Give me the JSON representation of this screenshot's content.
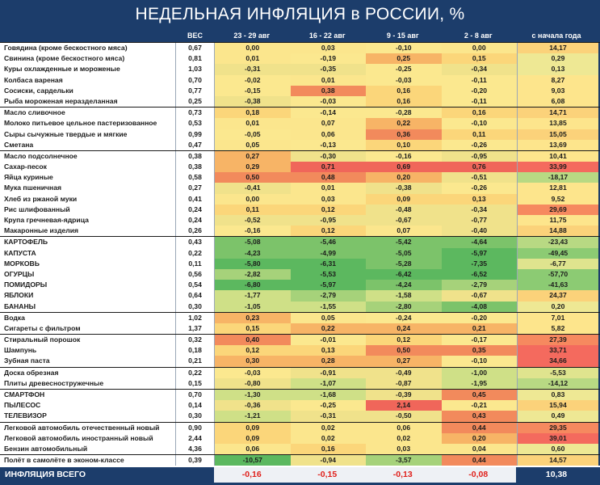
{
  "title": "НЕДЕЛЬНАЯ ИНФЛЯЦИЯ в РОССИИ, %",
  "headers": {
    "weight": "ВЕС",
    "w1": "23 - 29 авг",
    "w2": "16 - 22 авг",
    "w3": "9 - 15 авг",
    "w4": "2 - 8 авг",
    "ytd": "с начала года"
  },
  "chart_data": {
    "type": "table",
    "title": "НЕДЕЛЬНАЯ ИНФЛЯЦИЯ в РОССИИ, %",
    "columns": [
      "ВЕС",
      "23 - 29 авг",
      "16 - 22 авг",
      "9 - 15 авг",
      "2 - 8 авг",
      "с начала года"
    ],
    "rows": [
      {
        "name": "Говядина (кроме бескостного мяса)",
        "weight": "0,67",
        "w1": "0,00",
        "w2": "0,03",
        "w3": "-0,10",
        "w4": "0,00",
        "ytd": "14,17",
        "sep": true
      },
      {
        "name": "Свинина (кроме бескостного мяса)",
        "weight": "0,81",
        "w1": "0,01",
        "w2": "-0,19",
        "w3": "0,25",
        "w4": "0,15",
        "ytd": "0,29"
      },
      {
        "name": "Куры охлажденные и мороженые",
        "weight": "1,03",
        "w1": "-0,31",
        "w2": "-0,35",
        "w3": "-0,25",
        "w4": "-0,34",
        "ytd": "0,13"
      },
      {
        "name": "Колбаса вареная",
        "weight": "0,70",
        "w1": "-0,02",
        "w2": "0,01",
        "w3": "-0,03",
        "w4": "-0,11",
        "ytd": "8,27"
      },
      {
        "name": "Сосиски, сардельки",
        "weight": "0,77",
        "w1": "-0,15",
        "w2": "0,38",
        "w3": "0,16",
        "w4": "-0,20",
        "ytd": "9,03"
      },
      {
        "name": "Рыба мороженая неразделанная",
        "weight": "0,25",
        "w1": "-0,38",
        "w2": "-0,03",
        "w3": "0,16",
        "w4": "-0,11",
        "ytd": "6,08"
      },
      {
        "name": "Масло сливочное",
        "weight": "0,73",
        "w1": "0,18",
        "w2": "-0,14",
        "w3": "-0,28",
        "w4": "0,16",
        "ytd": "14,71",
        "sep": true
      },
      {
        "name": "Молоко питьевое цельное пастеризованное",
        "weight": "0,53",
        "w1": "0,01",
        "w2": "0,07",
        "w3": "0,22",
        "w4": "-0,10",
        "ytd": "13,85"
      },
      {
        "name": "Сыры сычужные твердые и мягкие",
        "weight": "0,99",
        "w1": "-0,05",
        "w2": "0,06",
        "w3": "0,36",
        "w4": "0,11",
        "ytd": "15,05"
      },
      {
        "name": "Сметана",
        "weight": "0,47",
        "w1": "0,05",
        "w2": "-0,13",
        "w3": "0,10",
        "w4": "-0,26",
        "ytd": "13,69"
      },
      {
        "name": "Масло подсолнечное",
        "weight": "0,38",
        "w1": "0,27",
        "w2": "-0,30",
        "w3": "-0,16",
        "w4": "-0,95",
        "ytd": "10,41",
        "sep": true
      },
      {
        "name": "Сахар-песок",
        "weight": "0,38",
        "w1": "0,29",
        "w2": "0,71",
        "w3": "0,69",
        "w4": "0,76",
        "ytd": "33,99"
      },
      {
        "name": "Яйца куриные",
        "weight": "0,58",
        "w1": "0,50",
        "w2": "0,48",
        "w3": "0,20",
        "w4": "-0,51",
        "ytd": "-18,17"
      },
      {
        "name": "Мука пшеничная",
        "weight": "0,27",
        "w1": "-0,41",
        "w2": "0,01",
        "w3": "-0,38",
        "w4": "-0,26",
        "ytd": "12,81"
      },
      {
        "name": "Хлеб из ржаной муки",
        "weight": "0,41",
        "w1": "0,00",
        "w2": "0,03",
        "w3": "0,09",
        "w4": "0,13",
        "ytd": "9,52"
      },
      {
        "name": "Рис шлифованный",
        "weight": "0,24",
        "w1": "0,11",
        "w2": "0,12",
        "w3": "-0,48",
        "w4": "-0,34",
        "ytd": "29,69"
      },
      {
        "name": "Крупа гречневая-ядрица",
        "weight": "0,24",
        "w1": "-0,52",
        "w2": "-0,95",
        "w3": "-0,67",
        "w4": "-0,77",
        "ytd": "11,75"
      },
      {
        "name": "Макаронные изделия",
        "weight": "0,26",
        "w1": "-0,16",
        "w2": "0,12",
        "w3": "0,07",
        "w4": "-0,40",
        "ytd": "14,88"
      },
      {
        "name": "КАРТОФЕЛЬ",
        "weight": "0,43",
        "w1": "-5,08",
        "w2": "-5,46",
        "w3": "-5,42",
        "w4": "-4,64",
        "ytd": "-23,43",
        "sep": true
      },
      {
        "name": "КАПУСТА",
        "weight": "0,22",
        "w1": "-4,23",
        "w2": "-4,99",
        "w3": "-5,05",
        "w4": "-5,97",
        "ytd": "-49,45"
      },
      {
        "name": "МОРКОВЬ",
        "weight": "0,11",
        "w1": "-5,80",
        "w2": "-6,31",
        "w3": "-5,28",
        "w4": "-7,35",
        "ytd": "-6,77"
      },
      {
        "name": "ОГУРЦЫ",
        "weight": "0,56",
        "w1": "-2,82",
        "w2": "-5,53",
        "w3": "-6,42",
        "w4": "-6,52",
        "ytd": "-57,70"
      },
      {
        "name": "ПОМИДОРЫ",
        "weight": "0,54",
        "w1": "-6,80",
        "w2": "-5,97",
        "w3": "-4,24",
        "w4": "-2,79",
        "ytd": "-41,63"
      },
      {
        "name": "ЯБЛОКИ",
        "weight": "0,64",
        "w1": "-1,77",
        "w2": "-2,79",
        "w3": "-1,58",
        "w4": "-0,67",
        "ytd": "24,37"
      },
      {
        "name": "БАНАНЫ",
        "weight": "0,30",
        "w1": "-1,05",
        "w2": "-1,55",
        "w3": "-2,80",
        "w4": "-4,08",
        "ytd": "0,20"
      },
      {
        "name": "Водка",
        "weight": "1,02",
        "w1": "0,23",
        "w2": "0,05",
        "w3": "-0,24",
        "w4": "-0,20",
        "ytd": "7,01",
        "sep": true
      },
      {
        "name": "Сигареты с фильтром",
        "weight": "1,37",
        "w1": "0,15",
        "w2": "0,22",
        "w3": "0,24",
        "w4": "0,21",
        "ytd": "5,82"
      },
      {
        "name": "Стиральный порошок",
        "weight": "0,32",
        "w1": "0,40",
        "w2": "-0,01",
        "w3": "0,12",
        "w4": "-0,17",
        "ytd": "27,39",
        "sep": true
      },
      {
        "name": "Шампунь",
        "weight": "0,18",
        "w1": "0,12",
        "w2": "0,13",
        "w3": "0,50",
        "w4": "0,35",
        "ytd": "33,71"
      },
      {
        "name": "Зубная паста",
        "weight": "0,21",
        "w1": "0,30",
        "w2": "0,28",
        "w3": "0,27",
        "w4": "-0,10",
        "ytd": "34,66"
      },
      {
        "name": "Доска обрезная",
        "weight": "0,22",
        "w1": "-0,03",
        "w2": "-0,91",
        "w3": "-0,49",
        "w4": "-1,00",
        "ytd": "-5,53",
        "sep": true
      },
      {
        "name": "Плиты древесностружечные",
        "weight": "0,15",
        "w1": "-0,80",
        "w2": "-1,07",
        "w3": "-0,87",
        "w4": "-1,95",
        "ytd": "-14,12"
      },
      {
        "name": "СМАРТФОН",
        "weight": "0,70",
        "w1": "-1,30",
        "w2": "-1,68",
        "w3": "-0,39",
        "w4": "0,45",
        "ytd": "0,83",
        "sep": true
      },
      {
        "name": "ПЫЛЕСОС",
        "weight": "0,14",
        "w1": "-0,36",
        "w2": "-0,25",
        "w3": "2,14",
        "w4": "-0,21",
        "ytd": "15,94"
      },
      {
        "name": "ТЕЛЕВИЗОР",
        "weight": "0,30",
        "w1": "-1,21",
        "w2": "-0,31",
        "w3": "-0,50",
        "w4": "0,43",
        "ytd": "0,49"
      },
      {
        "name": "Легковой автомобиль отечественный новый",
        "weight": "0,90",
        "w1": "0,09",
        "w2": "0,02",
        "w3": "0,06",
        "w4": "0,44",
        "ytd": "29,35",
        "sep": true
      },
      {
        "name": "Легковой автомобиль иностранный новый",
        "weight": "2,44",
        "w1": "0,09",
        "w2": "0,02",
        "w3": "0,02",
        "w4": "0,20",
        "ytd": "39,01"
      },
      {
        "name": "Бензин автомобильный",
        "weight": "4,36",
        "w1": "0,06",
        "w2": "0,16",
        "w3": "0,03",
        "w4": "0,04",
        "ytd": "0,60"
      },
      {
        "name": "Полёт в самолёте в эконом-классе",
        "weight": "0,39",
        "w1": "-10,57",
        "w2": "-0,94",
        "w3": "-3,57",
        "w4": "0,44",
        "ytd": "14,57",
        "sep": true
      }
    ],
    "total": {
      "name": "ИНФЛЯЦИЯ ВСЕГО",
      "w1": "-0,16",
      "w2": "-0,15",
      "w3": "-0,13",
      "w4": "-0,08",
      "ytd": "10,38"
    }
  },
  "total_colors": {
    "text_red": "#e0201b",
    "header_bg": "#1c3d6b"
  }
}
